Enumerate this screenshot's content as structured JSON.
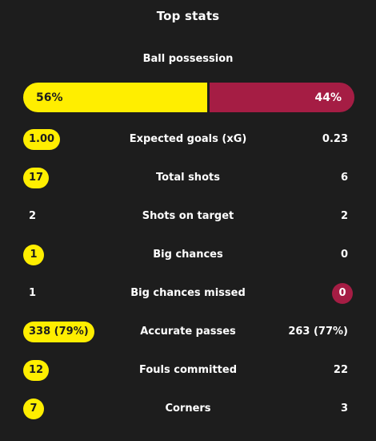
{
  "header": {
    "title": "Top stats"
  },
  "possession": {
    "label": "Ball possession",
    "home_text": "56%",
    "away_text": "44%",
    "home_share": 0.56,
    "home_color": "#ffee00",
    "away_color": "#a51d44"
  },
  "stats": [
    {
      "label": "Expected goals (xG)",
      "home": "1.00",
      "away": "0.23",
      "highlight": "home"
    },
    {
      "label": "Total shots",
      "home": "17",
      "away": "6",
      "highlight": "home"
    },
    {
      "label": "Shots on target",
      "home": "2",
      "away": "2",
      "highlight": "none"
    },
    {
      "label": "Big chances",
      "home": "1",
      "away": "0",
      "highlight": "home"
    },
    {
      "label": "Big chances missed",
      "home": "1",
      "away": "0",
      "highlight": "away"
    },
    {
      "label": "Accurate passes",
      "home": "338 (79%)",
      "away": "263 (77%)",
      "highlight": "home"
    },
    {
      "label": "Fouls committed",
      "home": "12",
      "away": "22",
      "highlight": "home"
    },
    {
      "label": "Corners",
      "home": "7",
      "away": "3",
      "highlight": "home"
    }
  ]
}
